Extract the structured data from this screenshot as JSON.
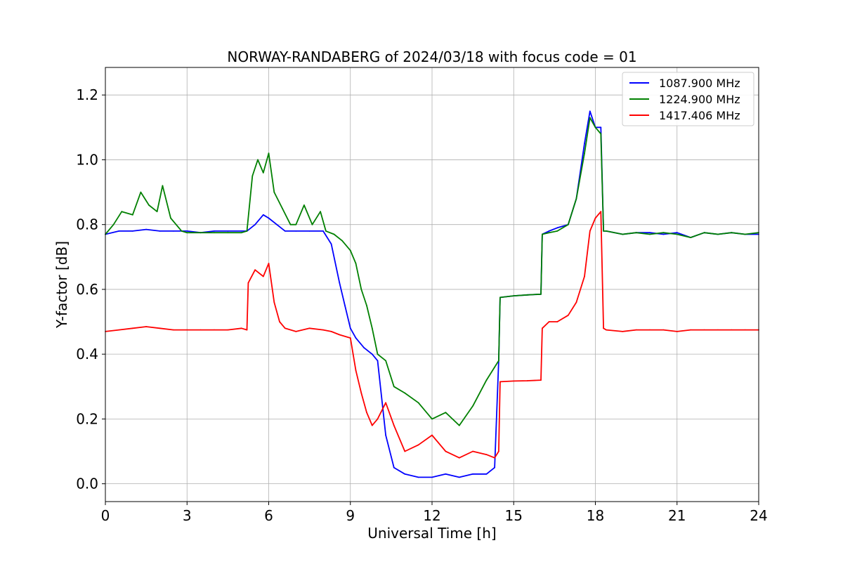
{
  "chart_data": {
    "type": "line",
    "title": "NORWAY-RANDABERG of 2024/03/18 with focus code = 01",
    "xlabel": "Universal Time [h]",
    "ylabel": "Y-factor [dB]",
    "xlim": [
      0,
      24
    ],
    "ylim": [
      -0.055,
      1.285
    ],
    "xticks": [
      0,
      3,
      6,
      9,
      12,
      15,
      18,
      21,
      24
    ],
    "xtick_labels": [
      "0",
      "3",
      "6",
      "9",
      "12",
      "15",
      "18",
      "21",
      "24"
    ],
    "yticks": [
      0.0,
      0.2,
      0.4,
      0.6,
      0.8,
      1.0,
      1.2
    ],
    "ytick_labels": [
      "0.0",
      "0.2",
      "0.4",
      "0.6",
      "0.8",
      "1.0",
      "1.2"
    ],
    "grid": true,
    "legend_position": "top-right",
    "series": [
      {
        "name": "1087.900 MHz",
        "color": "#0000ff",
        "x": [
          0,
          0.5,
          1.0,
          1.5,
          2.0,
          2.5,
          3.0,
          3.5,
          4.0,
          4.5,
          5.0,
          5.2,
          5.5,
          5.8,
          6.0,
          6.3,
          6.6,
          7.0,
          7.5,
          8.0,
          8.3,
          8.6,
          8.8,
          9.0,
          9.2,
          9.5,
          9.8,
          10.0,
          10.3,
          10.6,
          11.0,
          11.5,
          12.0,
          12.5,
          13.0,
          13.5,
          14.0,
          14.3,
          14.45,
          14.5,
          15.0,
          15.5,
          16.0,
          16.05,
          16.3,
          16.6,
          17.0,
          17.3,
          17.6,
          17.8,
          18.0,
          18.2,
          18.3,
          18.4,
          19.0,
          19.5,
          20.0,
          20.5,
          21.0,
          21.5,
          22.0,
          22.5,
          23.0,
          23.5,
          24.0
        ],
        "y": [
          0.77,
          0.78,
          0.78,
          0.785,
          0.78,
          0.78,
          0.78,
          0.775,
          0.78,
          0.78,
          0.78,
          0.78,
          0.8,
          0.83,
          0.82,
          0.8,
          0.78,
          0.78,
          0.78,
          0.78,
          0.74,
          0.62,
          0.55,
          0.48,
          0.45,
          0.42,
          0.4,
          0.38,
          0.15,
          0.05,
          0.03,
          0.02,
          0.02,
          0.03,
          0.02,
          0.03,
          0.03,
          0.05,
          0.38,
          0.575,
          0.58,
          0.583,
          0.585,
          0.77,
          0.78,
          0.79,
          0.8,
          0.88,
          1.05,
          1.15,
          1.1,
          1.1,
          0.78,
          0.78,
          0.77,
          0.775,
          0.775,
          0.77,
          0.775,
          0.76,
          0.775,
          0.77,
          0.775,
          0.77,
          0.77
        ]
      },
      {
        "name": "1224.900 MHz",
        "color": "#008000",
        "x": [
          0,
          0.3,
          0.6,
          1.0,
          1.3,
          1.6,
          1.9,
          2.1,
          2.4,
          2.8,
          3.0,
          3.5,
          4.0,
          4.5,
          5.0,
          5.2,
          5.4,
          5.6,
          5.8,
          6.0,
          6.2,
          6.5,
          6.8,
          7.0,
          7.3,
          7.6,
          7.9,
          8.1,
          8.4,
          8.7,
          9.0,
          9.2,
          9.4,
          9.6,
          9.8,
          10.0,
          10.3,
          10.6,
          11.0,
          11.5,
          12.0,
          12.5,
          13.0,
          13.5,
          14.0,
          14.3,
          14.45,
          14.5,
          15.0,
          15.5,
          16.0,
          16.05,
          16.3,
          16.6,
          17.0,
          17.3,
          17.6,
          17.8,
          18.0,
          18.2,
          18.3,
          18.4,
          19.0,
          19.5,
          20.0,
          20.5,
          21.0,
          21.5,
          22.0,
          22.5,
          23.0,
          23.5,
          24.0
        ],
        "y": [
          0.77,
          0.8,
          0.84,
          0.83,
          0.9,
          0.86,
          0.84,
          0.92,
          0.82,
          0.78,
          0.775,
          0.775,
          0.775,
          0.775,
          0.775,
          0.78,
          0.95,
          1.0,
          0.96,
          1.02,
          0.9,
          0.85,
          0.8,
          0.8,
          0.86,
          0.8,
          0.84,
          0.78,
          0.77,
          0.75,
          0.72,
          0.68,
          0.6,
          0.55,
          0.48,
          0.4,
          0.38,
          0.3,
          0.28,
          0.25,
          0.2,
          0.22,
          0.18,
          0.24,
          0.32,
          0.36,
          0.38,
          0.575,
          0.58,
          0.583,
          0.585,
          0.77,
          0.775,
          0.78,
          0.8,
          0.88,
          1.02,
          1.13,
          1.1,
          1.08,
          0.78,
          0.78,
          0.77,
          0.775,
          0.77,
          0.775,
          0.77,
          0.76,
          0.775,
          0.77,
          0.775,
          0.77,
          0.775
        ]
      },
      {
        "name": "1417.406 MHz",
        "color": "#ff0000",
        "x": [
          0,
          0.5,
          1.0,
          1.5,
          2.0,
          2.5,
          3.0,
          3.5,
          4.0,
          4.5,
          5.0,
          5.2,
          5.25,
          5.5,
          5.8,
          6.0,
          6.2,
          6.4,
          6.6,
          7.0,
          7.5,
          8.0,
          8.3,
          8.6,
          9.0,
          9.2,
          9.4,
          9.6,
          9.8,
          10.0,
          10.3,
          10.6,
          11.0,
          11.5,
          12.0,
          12.5,
          13.0,
          13.5,
          14.0,
          14.3,
          14.45,
          14.5,
          15.0,
          15.5,
          16.0,
          16.05,
          16.3,
          16.6,
          17.0,
          17.3,
          17.6,
          17.8,
          18.0,
          18.2,
          18.3,
          18.4,
          19.0,
          19.5,
          20.0,
          20.5,
          21.0,
          21.5,
          22.0,
          22.5,
          23.0,
          23.5,
          24.0
        ],
        "y": [
          0.47,
          0.475,
          0.48,
          0.485,
          0.48,
          0.475,
          0.475,
          0.475,
          0.475,
          0.475,
          0.48,
          0.475,
          0.62,
          0.66,
          0.64,
          0.68,
          0.56,
          0.5,
          0.48,
          0.47,
          0.48,
          0.475,
          0.47,
          0.46,
          0.45,
          0.35,
          0.28,
          0.22,
          0.18,
          0.2,
          0.25,
          0.18,
          0.1,
          0.12,
          0.15,
          0.1,
          0.08,
          0.1,
          0.09,
          0.08,
          0.1,
          0.315,
          0.317,
          0.318,
          0.32,
          0.48,
          0.5,
          0.5,
          0.52,
          0.56,
          0.64,
          0.78,
          0.82,
          0.84,
          0.48,
          0.475,
          0.47,
          0.475,
          0.475,
          0.475,
          0.47,
          0.475,
          0.475,
          0.475,
          0.475,
          0.475,
          0.475
        ]
      }
    ]
  }
}
